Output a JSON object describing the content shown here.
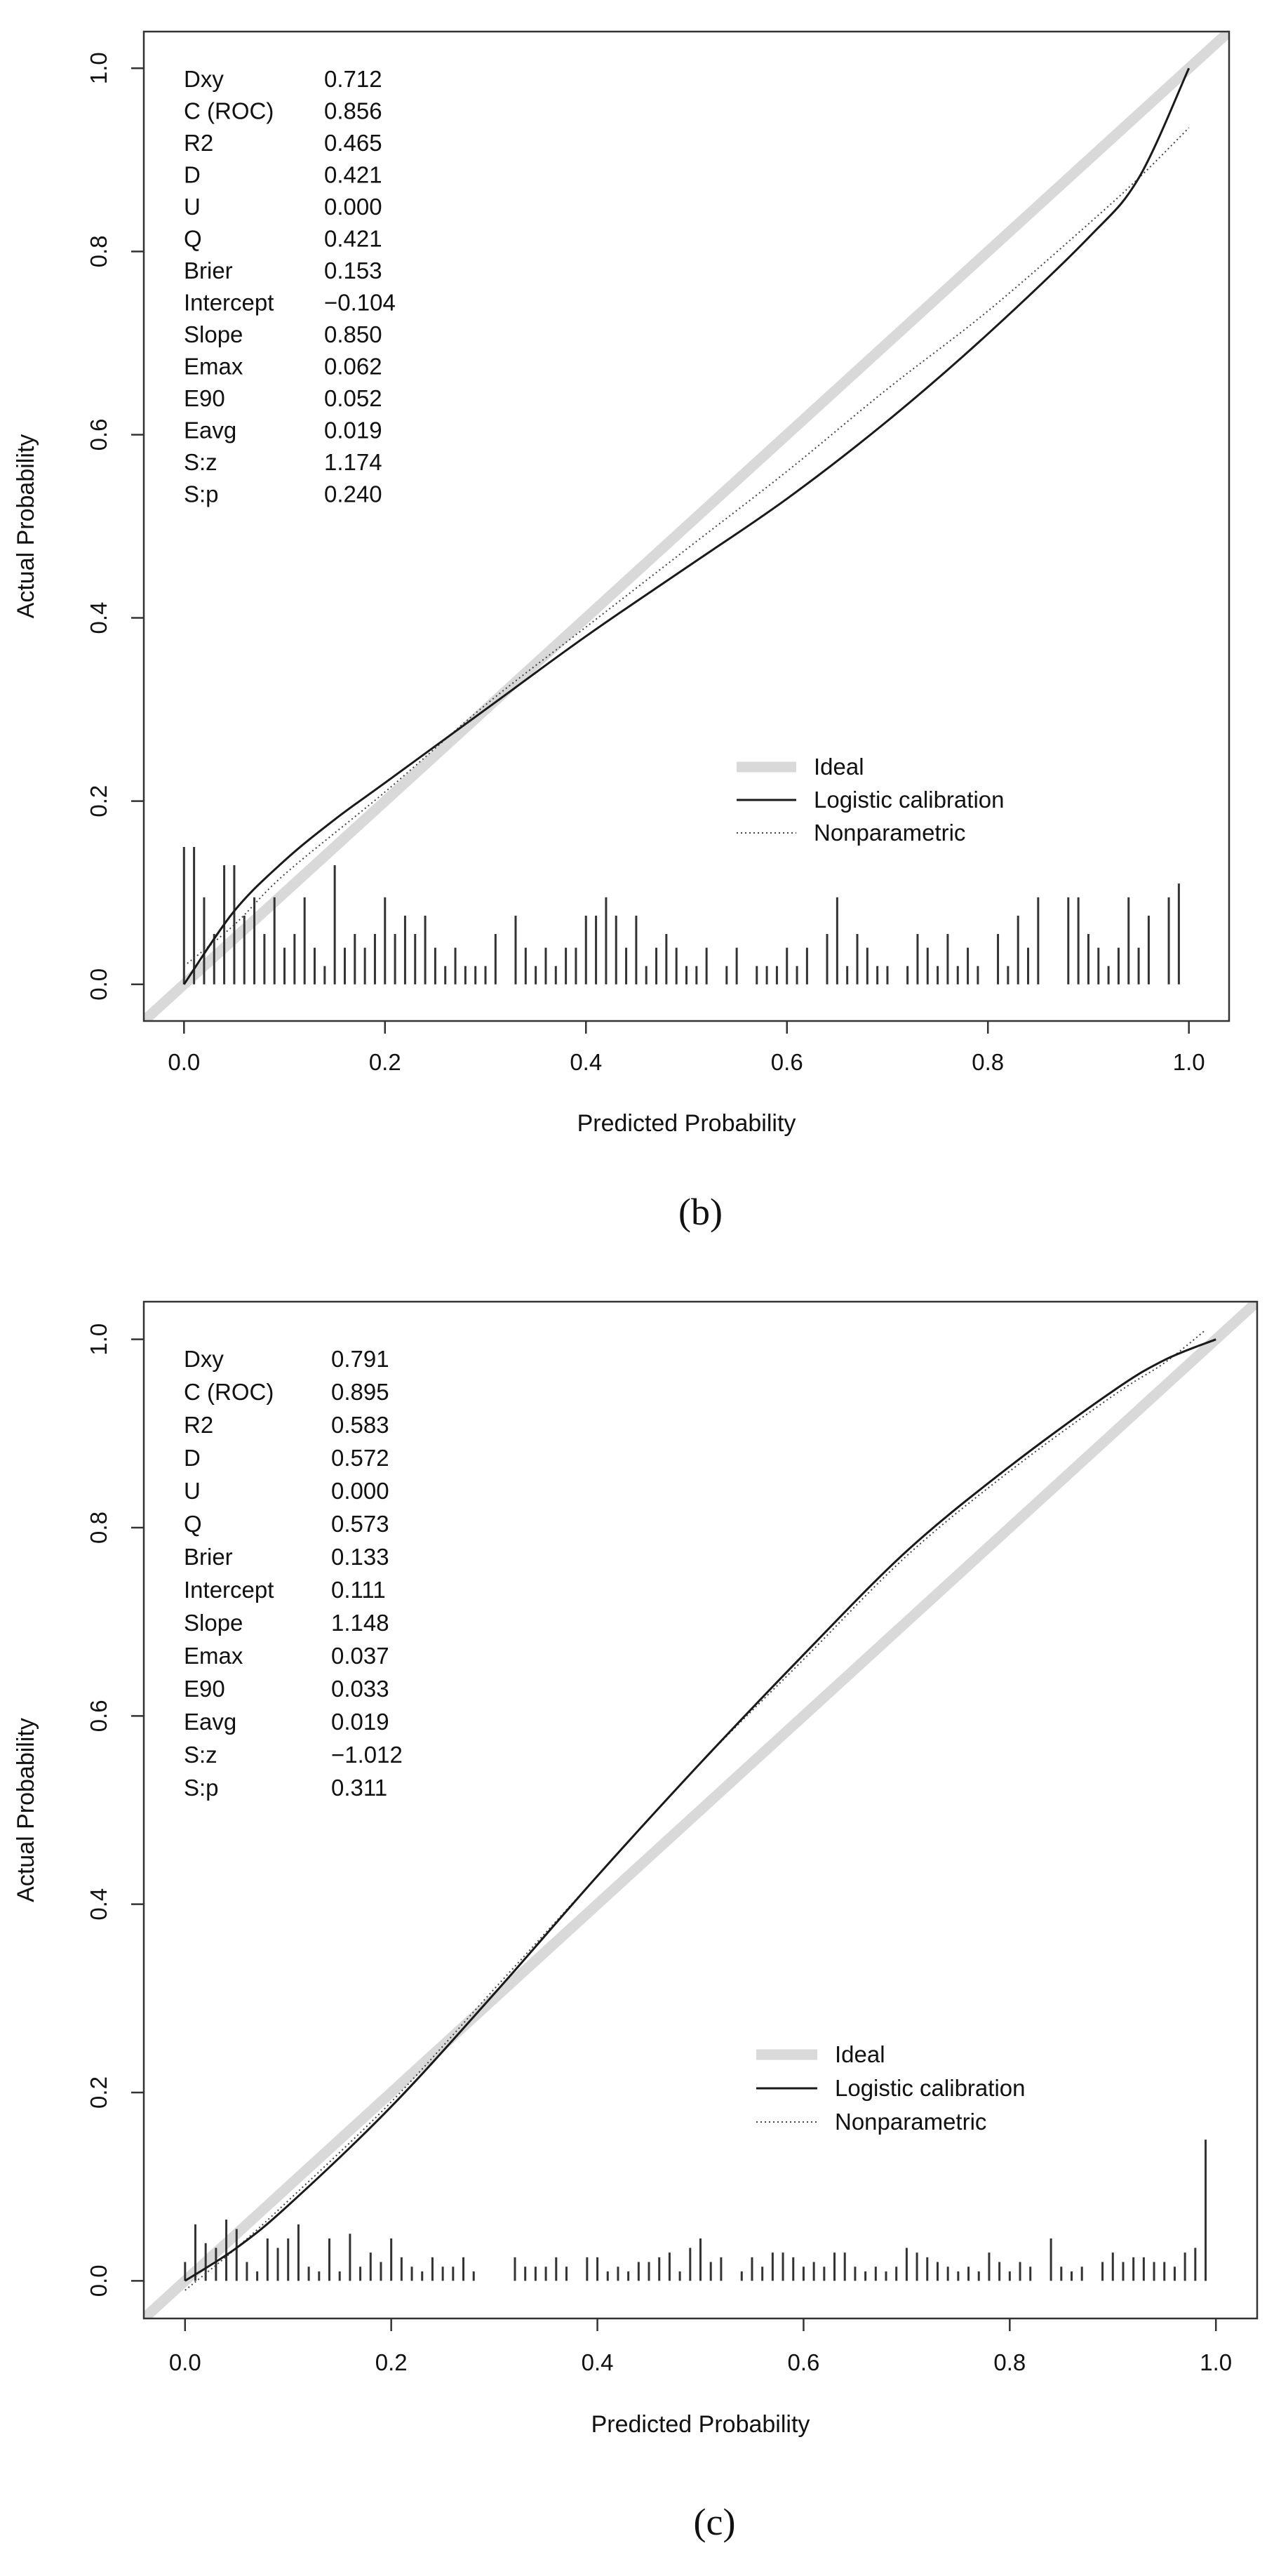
{
  "chart_data": [
    {
      "type": "line",
      "panel_label": "(b)",
      "xlabel": "Predicted Probability",
      "ylabel": "Actual Probability",
      "xlim": [
        -0.04,
        1.04
      ],
      "ylim": [
        -0.04,
        1.04
      ],
      "xticks": [
        "0.0",
        "0.2",
        "0.4",
        "0.6",
        "0.8",
        "1.0"
      ],
      "yticks": [
        "0.0",
        "0.2",
        "0.4",
        "0.6",
        "0.8",
        "1.0"
      ],
      "grid": false,
      "legend_position": "bottom-right",
      "legend": [
        "Ideal",
        "Logistic calibration",
        "Nonparametric"
      ],
      "stats": [
        {
          "label": "Dxy",
          "value": "0.712"
        },
        {
          "label": "C (ROC)",
          "value": "0.856"
        },
        {
          "label": "R2",
          "value": "0.465"
        },
        {
          "label": "D",
          "value": "0.421"
        },
        {
          "label": "U",
          "value": "0.000"
        },
        {
          "label": "Q",
          "value": "0.421"
        },
        {
          "label": "Brier",
          "value": "0.153"
        },
        {
          "label": "Intercept",
          "value": "−0.104"
        },
        {
          "label": "Slope",
          "value": "0.850"
        },
        {
          "label": "Emax",
          "value": "0.062"
        },
        {
          "label": "E90",
          "value": "0.052"
        },
        {
          "label": "Eavg",
          "value": "0.019"
        },
        {
          "label": "S:z",
          "value": "1.174"
        },
        {
          "label": "S:p",
          "value": "0.240"
        }
      ],
      "series": [
        {
          "name": "Ideal",
          "x": [
            -0.04,
            1.04
          ],
          "y": [
            -0.04,
            1.04
          ]
        },
        {
          "name": "Logistic calibration",
          "x": [
            0.0,
            0.05,
            0.1,
            0.15,
            0.2,
            0.3,
            0.4,
            0.5,
            0.6,
            0.7,
            0.8,
            0.9,
            0.95,
            1.0
          ],
          "y": [
            0.0,
            0.08,
            0.135,
            0.18,
            0.22,
            0.3,
            0.38,
            0.455,
            0.53,
            0.615,
            0.71,
            0.815,
            0.88,
            1.0
          ]
        },
        {
          "name": "Nonparametric",
          "x": [
            0.0,
            0.05,
            0.1,
            0.2,
            0.3,
            0.4,
            0.5,
            0.6,
            0.7,
            0.8,
            0.9,
            0.95,
            1.0
          ],
          "y": [
            0.02,
            0.065,
            0.12,
            0.21,
            0.305,
            0.39,
            0.475,
            0.56,
            0.65,
            0.735,
            0.83,
            0.88,
            0.935
          ]
        }
      ],
      "rug": {
        "x": [
          0.0,
          0.01,
          0.02,
          0.03,
          0.04,
          0.05,
          0.06,
          0.07,
          0.08,
          0.09,
          0.1,
          0.11,
          0.12,
          0.13,
          0.14,
          0.15,
          0.16,
          0.17,
          0.18,
          0.19,
          0.2,
          0.21,
          0.22,
          0.23,
          0.24,
          0.25,
          0.26,
          0.27,
          0.28,
          0.29,
          0.3,
          0.31,
          0.33,
          0.34,
          0.35,
          0.36,
          0.37,
          0.38,
          0.39,
          0.4,
          0.41,
          0.42,
          0.43,
          0.44,
          0.45,
          0.46,
          0.47,
          0.48,
          0.49,
          0.5,
          0.51,
          0.52,
          0.54,
          0.55,
          0.57,
          0.58,
          0.59,
          0.6,
          0.61,
          0.62,
          0.64,
          0.65,
          0.66,
          0.67,
          0.68,
          0.69,
          0.7,
          0.72,
          0.73,
          0.74,
          0.75,
          0.76,
          0.77,
          0.78,
          0.79,
          0.81,
          0.82,
          0.83,
          0.84,
          0.85,
          0.88,
          0.89,
          0.9,
          0.91,
          0.92,
          0.93,
          0.94,
          0.95,
          0.96,
          0.98,
          0.99
        ],
        "h": [
          0.15,
          0.15,
          0.095,
          0.055,
          0.13,
          0.13,
          0.075,
          0.095,
          0.055,
          0.095,
          0.04,
          0.055,
          0.095,
          0.04,
          0.02,
          0.13,
          0.04,
          0.055,
          0.04,
          0.055,
          0.095,
          0.055,
          0.075,
          0.055,
          0.075,
          0.04,
          0.02,
          0.04,
          0.02,
          0.02,
          0.02,
          0.055,
          0.075,
          0.04,
          0.02,
          0.04,
          0.02,
          0.04,
          0.04,
          0.075,
          0.075,
          0.095,
          0.075,
          0.04,
          0.075,
          0.02,
          0.04,
          0.055,
          0.04,
          0.02,
          0.02,
          0.04,
          0.02,
          0.04,
          0.02,
          0.02,
          0.02,
          0.04,
          0.02,
          0.04,
          0.055,
          0.095,
          0.02,
          0.055,
          0.04,
          0.02,
          0.02,
          0.02,
          0.055,
          0.04,
          0.02,
          0.055,
          0.02,
          0.04,
          0.02,
          0.055,
          0.02,
          0.075,
          0.04,
          0.095,
          0.095,
          0.095,
          0.055,
          0.04,
          0.02,
          0.04,
          0.095,
          0.04,
          0.075,
          0.095,
          0.11
        ]
      }
    },
    {
      "type": "line",
      "panel_label": "(c)",
      "xlabel": "Predicted Probability",
      "ylabel": "Actual Probability",
      "xlim": [
        -0.04,
        1.04
      ],
      "ylim": [
        -0.04,
        1.04
      ],
      "xticks": [
        "0.0",
        "0.2",
        "0.4",
        "0.6",
        "0.8",
        "1.0"
      ],
      "yticks": [
        "0.0",
        "0.2",
        "0.4",
        "0.6",
        "0.8",
        "1.0"
      ],
      "grid": false,
      "legend_position": "bottom-right",
      "legend": [
        "Ideal",
        "Logistic calibration",
        "Nonparametric"
      ],
      "stats": [
        {
          "label": "Dxy",
          "value": "0.791"
        },
        {
          "label": "C (ROC)",
          "value": "0.895"
        },
        {
          "label": "R2",
          "value": "0.583"
        },
        {
          "label": "D",
          "value": "0.572"
        },
        {
          "label": "U",
          "value": "0.000"
        },
        {
          "label": "Q",
          "value": "0.573"
        },
        {
          "label": "Brier",
          "value": "0.133"
        },
        {
          "label": "Intercept",
          "value": "0.111"
        },
        {
          "label": "Slope",
          "value": "1.148"
        },
        {
          "label": "Emax",
          "value": "0.037"
        },
        {
          "label": "E90",
          "value": "0.033"
        },
        {
          "label": "Eavg",
          "value": "0.019"
        },
        {
          "label": "S:z",
          "value": "−1.012"
        },
        {
          "label": "S:p",
          "value": "0.311"
        }
      ],
      "series": [
        {
          "name": "Ideal",
          "x": [
            -0.04,
            1.04
          ],
          "y": [
            -0.04,
            1.04
          ]
        },
        {
          "name": "Logistic calibration",
          "x": [
            0.0,
            0.05,
            0.1,
            0.2,
            0.3,
            0.4,
            0.5,
            0.6,
            0.7,
            0.8,
            0.9,
            0.95,
            1.0
          ],
          "y": [
            0.0,
            0.035,
            0.08,
            0.185,
            0.305,
            0.43,
            0.55,
            0.665,
            0.775,
            0.865,
            0.945,
            0.978,
            1.0
          ]
        },
        {
          "name": "Nonparametric",
          "x": [
            0.0,
            0.05,
            0.1,
            0.2,
            0.3,
            0.4,
            0.5,
            0.6,
            0.7,
            0.8,
            0.9,
            0.95,
            0.99
          ],
          "y": [
            -0.01,
            0.035,
            0.085,
            0.19,
            0.31,
            0.43,
            0.55,
            0.66,
            0.77,
            0.86,
            0.94,
            0.975,
            1.01
          ]
        }
      ],
      "rug": {
        "x": [
          0.0,
          0.01,
          0.02,
          0.03,
          0.04,
          0.05,
          0.06,
          0.07,
          0.08,
          0.09,
          0.1,
          0.11,
          0.12,
          0.13,
          0.14,
          0.15,
          0.16,
          0.17,
          0.18,
          0.19,
          0.2,
          0.21,
          0.22,
          0.23,
          0.24,
          0.25,
          0.26,
          0.27,
          0.28,
          0.32,
          0.33,
          0.34,
          0.35,
          0.36,
          0.37,
          0.39,
          0.4,
          0.41,
          0.42,
          0.43,
          0.44,
          0.45,
          0.46,
          0.47,
          0.48,
          0.49,
          0.5,
          0.51,
          0.52,
          0.54,
          0.55,
          0.56,
          0.57,
          0.58,
          0.59,
          0.6,
          0.61,
          0.62,
          0.63,
          0.64,
          0.65,
          0.66,
          0.67,
          0.68,
          0.69,
          0.7,
          0.71,
          0.72,
          0.73,
          0.74,
          0.75,
          0.76,
          0.77,
          0.78,
          0.79,
          0.8,
          0.81,
          0.82,
          0.84,
          0.85,
          0.86,
          0.87,
          0.89,
          0.9,
          0.91,
          0.92,
          0.93,
          0.94,
          0.95,
          0.96,
          0.97,
          0.98,
          0.99
        ],
        "h": [
          0.02,
          0.06,
          0.04,
          0.035,
          0.065,
          0.055,
          0.02,
          0.01,
          0.045,
          0.035,
          0.045,
          0.06,
          0.015,
          0.01,
          0.045,
          0.01,
          0.05,
          0.015,
          0.03,
          0.02,
          0.045,
          0.025,
          0.015,
          0.01,
          0.025,
          0.015,
          0.015,
          0.025,
          0.01,
          0.025,
          0.015,
          0.015,
          0.015,
          0.025,
          0.015,
          0.025,
          0.025,
          0.01,
          0.015,
          0.01,
          0.02,
          0.02,
          0.025,
          0.03,
          0.01,
          0.035,
          0.045,
          0.02,
          0.025,
          0.01,
          0.025,
          0.015,
          0.03,
          0.03,
          0.025,
          0.015,
          0.02,
          0.015,
          0.03,
          0.03,
          0.015,
          0.01,
          0.015,
          0.01,
          0.015,
          0.035,
          0.03,
          0.025,
          0.02,
          0.015,
          0.01,
          0.015,
          0.01,
          0.03,
          0.02,
          0.01,
          0.02,
          0.015,
          0.045,
          0.015,
          0.01,
          0.015,
          0.02,
          0.03,
          0.02,
          0.025,
          0.025,
          0.02,
          0.02,
          0.015,
          0.03,
          0.035,
          0.15
        ]
      }
    }
  ]
}
